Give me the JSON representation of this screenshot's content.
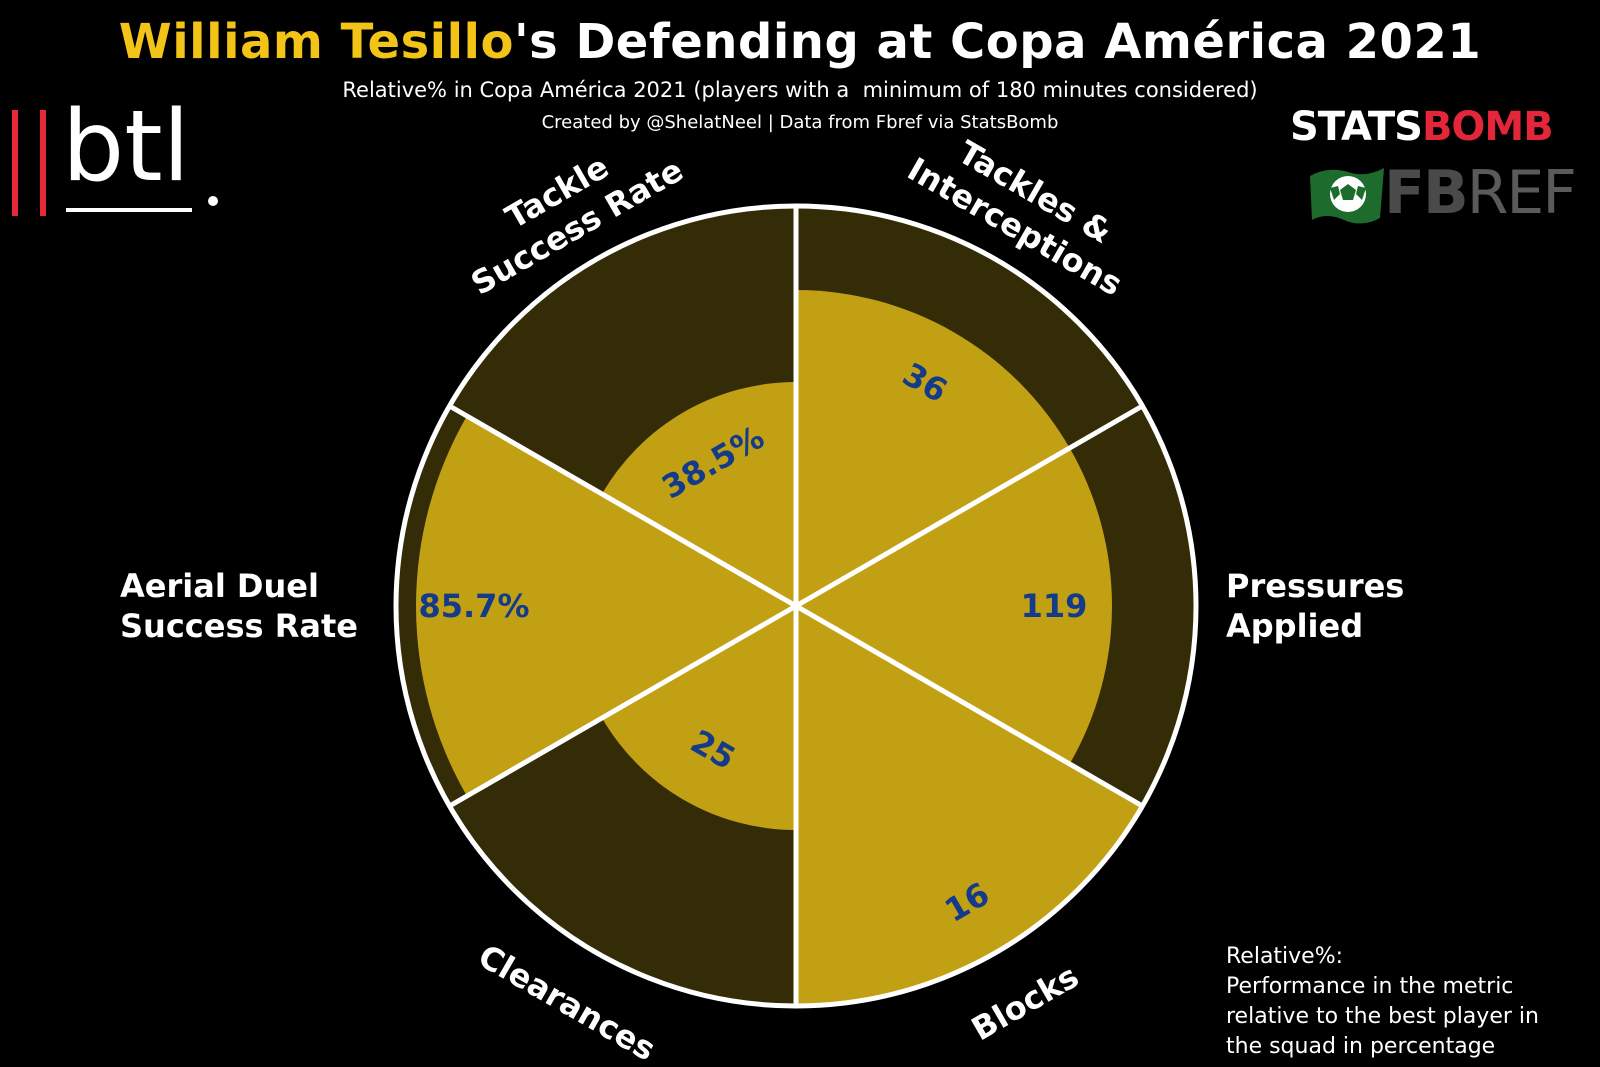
{
  "header": {
    "title_player": "William Tesillo",
    "title_rest": "'s Defending at Copa América 2021",
    "subtitle": "Relative% in Copa América 2021 (players with a  minimum of 180 minutes considered)",
    "credit": "Created by @ShelatNeel | Data from Fbref via StatsBomb"
  },
  "logos": {
    "btl": "btl",
    "statsbomb_a": "STATS",
    "statsbomb_b": "BOMB",
    "fbref_a": "FB",
    "fbref_b": "REF"
  },
  "colors": {
    "background": "#000000",
    "fill": "#c2a014",
    "track": "#342b07",
    "value_text": "#143a8a",
    "accent_yellow": "#f2c418",
    "accent_red": "#e3263a"
  },
  "chart_data": {
    "type": "radar",
    "ylim": [
      0,
      100
    ],
    "unit": "Relative%",
    "categories": [
      "Tackles & Interceptions",
      "Pressures Applied",
      "Blocks",
      "Clearances",
      "Aerial Duel Success Rate",
      "Tackle Success Rate"
    ],
    "label_lines": [
      [
        "Tackles &",
        "Interceptions"
      ],
      [
        "Pressures",
        "Applied"
      ],
      [
        "Blocks"
      ],
      [
        "Clearances"
      ],
      [
        "Aerial Duel",
        "Success Rate"
      ],
      [
        "Tackle",
        "Success Rate"
      ]
    ],
    "value_labels": [
      "36",
      "119",
      "16",
      "25",
      "85.7%",
      "38.5%"
    ],
    "relative_percent": [
      79,
      79,
      100,
      56,
      95,
      56
    ]
  },
  "note": {
    "lines": [
      "Relative%:",
      "Performance in the metric",
      "relative to the best player in",
      "the squad in percentage"
    ]
  }
}
